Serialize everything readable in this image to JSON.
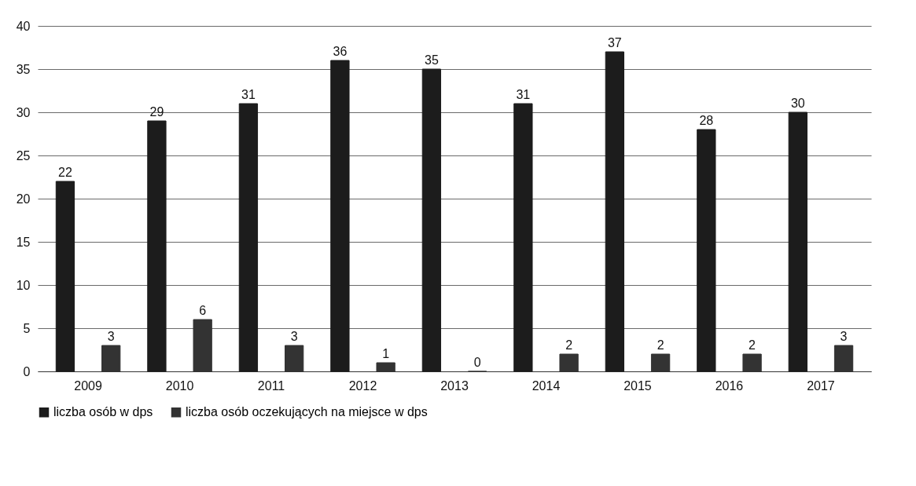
{
  "chart_data": {
    "type": "bar",
    "categories": [
      "2009",
      "2010",
      "2011",
      "2012",
      "2013",
      "2014",
      "2015",
      "2016",
      "2017"
    ],
    "series": [
      {
        "name": "liczba osób w dps",
        "color": "#1c1c1c",
        "values": [
          22,
          29,
          31,
          36,
          35,
          31,
          37,
          28,
          30
        ]
      },
      {
        "name": "liczba osób oczekujących na miejsce w dps",
        "color": "#333333",
        "values": [
          3,
          6,
          3,
          1,
          0,
          2,
          2,
          2,
          3
        ]
      }
    ],
    "ylim": [
      0,
      40
    ],
    "yticks": [
      0,
      5,
      10,
      15,
      20,
      25,
      30,
      35,
      40
    ],
    "grid": "y",
    "legend": "bottom",
    "data_labels": true
  }
}
